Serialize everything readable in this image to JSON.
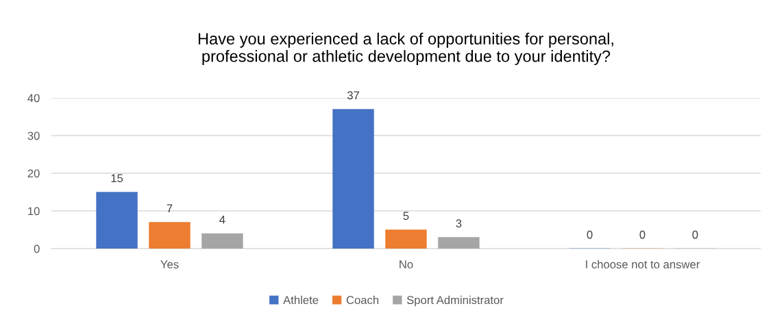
{
  "chart_data": {
    "type": "bar",
    "title": "Have you experienced a lack of opportunities for personal,\nprofessional or athletic development due to your identity?",
    "categories": [
      "Yes",
      "No",
      "I choose not to answer"
    ],
    "series": [
      {
        "name": "Athlete",
        "color": "#4472c4",
        "values": [
          15,
          37,
          0
        ]
      },
      {
        "name": "Coach",
        "color": "#ed7d31",
        "values": [
          7,
          5,
          0
        ]
      },
      {
        "name": "Sport Administrator",
        "color": "#a5a5a5",
        "values": [
          4,
          3,
          0
        ]
      }
    ],
    "ylim": [
      0,
      40
    ],
    "yticks": [
      0,
      10,
      20,
      30,
      40
    ],
    "grid": "y",
    "legend": "bottom",
    "data_labels": true
  }
}
